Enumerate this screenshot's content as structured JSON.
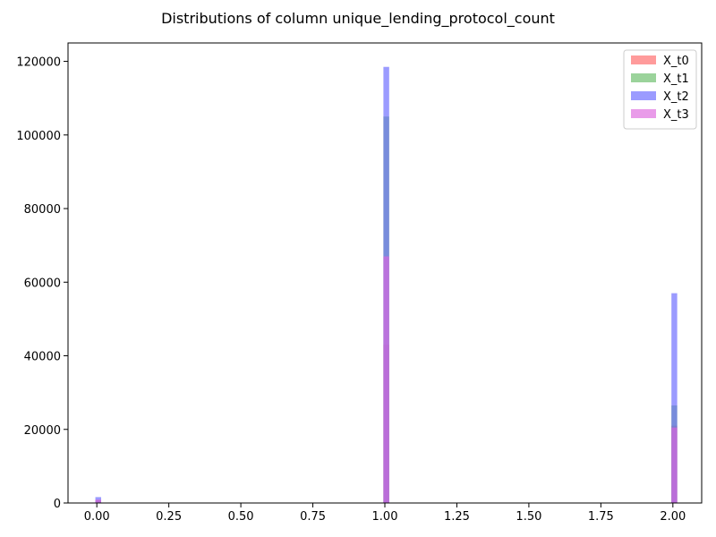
{
  "chart_data": {
    "type": "bar",
    "title": "Distributions of column unique_lending_protocol_count",
    "xlabel": "",
    "ylabel": "",
    "xlim": [
      -0.1,
      2.1
    ],
    "ylim": [
      0,
      125000
    ],
    "x_ticks": [
      "0.00",
      "0.25",
      "0.50",
      "0.75",
      "1.00",
      "1.25",
      "1.50",
      "1.75",
      "2.00"
    ],
    "y_ticks": [
      "0",
      "20000",
      "40000",
      "60000",
      "80000",
      "100000",
      "120000"
    ],
    "grid": false,
    "legend_position": "top-right",
    "series": [
      {
        "name": "X_t0",
        "color": "#ff6666",
        "x": [
          0,
          1,
          2
        ],
        "values": [
          800,
          43000,
          21000
        ]
      },
      {
        "name": "X_t1",
        "color": "#66bb66",
        "x": [
          0,
          1,
          2
        ],
        "values": [
          600,
          105000,
          26500
        ]
      },
      {
        "name": "X_t2",
        "color": "#6666ff",
        "x": [
          0,
          1,
          2
        ],
        "values": [
          1600,
          118500,
          57000
        ]
      },
      {
        "name": "X_t3",
        "color": "#dd66dd",
        "x": [
          0,
          1,
          2
        ],
        "values": [
          900,
          67000,
          20500
        ]
      }
    ]
  }
}
